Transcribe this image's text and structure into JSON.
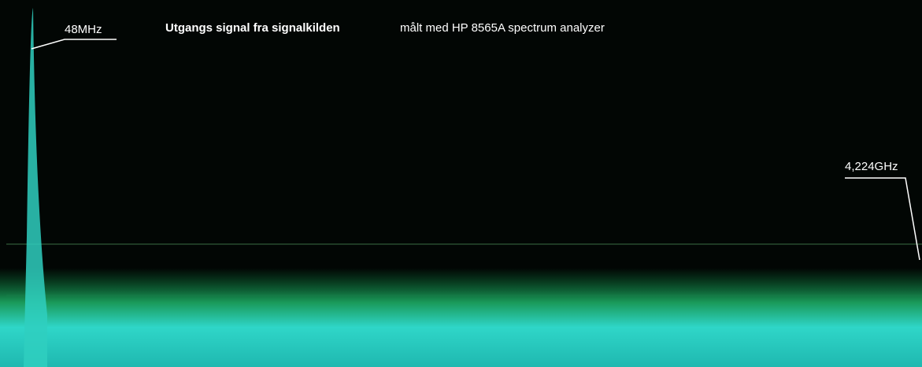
{
  "labels": {
    "start_frequency": "48MHz",
    "end_frequency": "4,224GHz"
  },
  "title": {
    "main": "Utgangs signal fra signalkilden",
    "sub": "målt med HP 8565A spectrum analyzer"
  }
}
